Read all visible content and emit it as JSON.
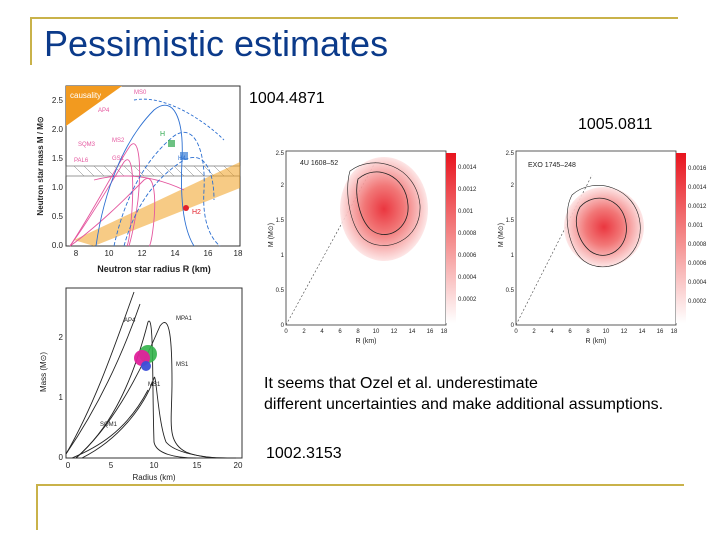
{
  "slide": {
    "title": "Pessimistic estimates",
    "ref_top": "1004.4871",
    "ref_right": "1005.0811",
    "ref_bottom": "1002.3153",
    "note_line1": "It seems that Ozel et al. underestimate",
    "note_line2": "different uncertainties and make additional assumptions."
  },
  "figure_a": {
    "ylabel": "Neutron star mass M / M⊙",
    "xlabel": "Neutron star radius R (km)",
    "region_label": "causality",
    "yticks": [
      "0.0",
      "0.5",
      "1.0",
      "1.5",
      "2.0",
      "2.5"
    ],
    "xticks": [
      "8",
      "10",
      "12",
      "14",
      "16",
      "18"
    ],
    "curve_labels": [
      "AP4",
      "MS0",
      "MS2",
      "SQM3",
      "PAL6",
      "GS1",
      "H",
      "H4",
      "H2"
    ],
    "colors": {
      "causality": "#f29a1f",
      "eos_hadronic": "#2c6fd1",
      "eos_quark": "#e4579f",
      "band": "#f0a020",
      "marker_red": "#e3212b",
      "marker_green": "#2fa84f",
      "marker_blue": "#3a7fd5"
    }
  },
  "figure_b": {
    "ylabel": "Mass (M⊙)",
    "xlabel": "Radius (km)",
    "yticks": [
      "0",
      "1",
      "2"
    ],
    "xticks": [
      "0",
      "5",
      "10",
      "15",
      "20"
    ],
    "curve_labels": [
      "AP4",
      "MPA1",
      "MS1",
      "MS1",
      "SQM1"
    ],
    "colors": {
      "blob_magenta": "#e0219b",
      "blob_green": "#32b34a",
      "blob_blue": "#3b4fd8"
    }
  },
  "figure_c": {
    "source_label": "4U 1608–52",
    "xlabel": "R (km)",
    "ylabel": "M (M⊙)",
    "yticks": [
      "0",
      "0.5",
      "1",
      "1.5",
      "2",
      "2.5"
    ],
    "xticks": [
      "0",
      "2",
      "4",
      "6",
      "8",
      "10",
      "12",
      "14",
      "16",
      "18"
    ],
    "cbar_ticks": [
      "0.0002",
      "0.0004",
      "0.0006",
      "0.0008",
      "0.001",
      "0.0012",
      "0.0014"
    ]
  },
  "figure_d": {
    "source_label": "EXO 1745–248",
    "xlabel": "R (km)",
    "ylabel": "M (M⊙)",
    "yticks": [
      "0",
      "0.5",
      "1",
      "1.5",
      "2",
      "2.5"
    ],
    "xticks": [
      "0",
      "2",
      "4",
      "6",
      "8",
      "10",
      "12",
      "14",
      "16",
      "18"
    ],
    "cbar_ticks": [
      "0.0002",
      "0.0004",
      "0.0006",
      "0.0008",
      "0.001",
      "0.0012",
      "0.0014",
      "0.0016"
    ]
  }
}
